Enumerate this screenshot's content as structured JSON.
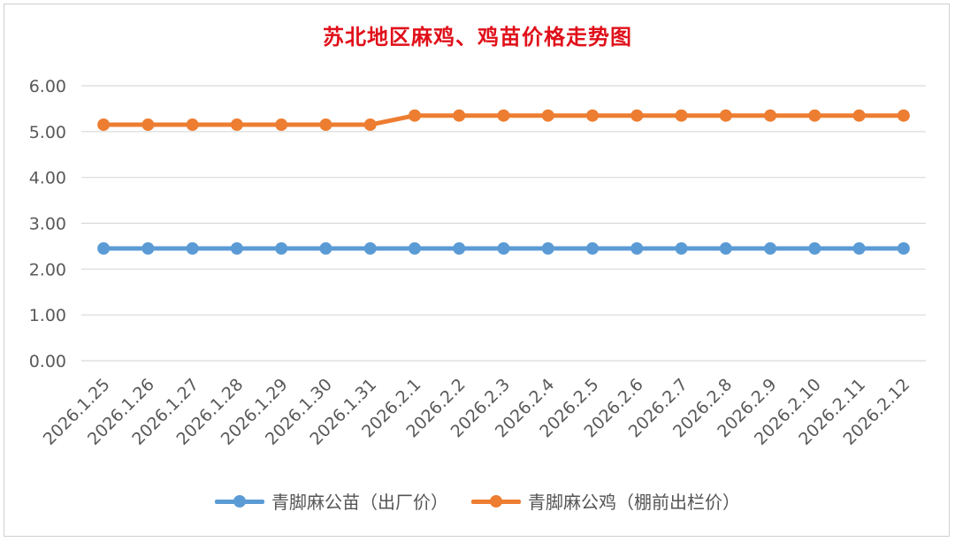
{
  "chart_data": {
    "type": "line",
    "title": "苏北地区麻鸡、鸡苗价格走势图",
    "categories": [
      "2026.1.25",
      "2026.1.26",
      "2026.1.27",
      "2026.1.28",
      "2026.1.29",
      "2026.1.30",
      "2026.1.31",
      "2026.2.1",
      "2026.2.2",
      "2026.2.3",
      "2026.2.4",
      "2026.2.5",
      "2026.2.6",
      "2026.2.7",
      "2026.2.8",
      "2026.2.9",
      "2026.2.10",
      "2026.2.11",
      "2026.2.12"
    ],
    "series": [
      {
        "name": "青脚麻公苗（出厂价）",
        "color": "#5b9bd5",
        "values": [
          2.45,
          2.45,
          2.45,
          2.45,
          2.45,
          2.45,
          2.45,
          2.45,
          2.45,
          2.45,
          2.45,
          2.45,
          2.45,
          2.45,
          2.45,
          2.45,
          2.45,
          2.45,
          2.45
        ]
      },
      {
        "name": "青脚麻公鸡（棚前出栏价）",
        "color": "#ed7d31",
        "values": [
          5.15,
          5.15,
          5.15,
          5.15,
          5.15,
          5.15,
          5.15,
          5.35,
          5.35,
          5.35,
          5.35,
          5.35,
          5.35,
          5.35,
          5.35,
          5.35,
          5.35,
          5.35,
          5.35
        ]
      }
    ],
    "ylim": [
      0,
      6
    ],
    "yticks": [
      "0.00",
      "1.00",
      "2.00",
      "3.00",
      "4.00",
      "5.00",
      "6.00"
    ],
    "xlabel": "",
    "ylabel": "",
    "grid": true,
    "legend_position": "bottom",
    "title_color": "#e0101a",
    "gridline_color": "#d9d9d9",
    "axis_text_color": "#595959"
  }
}
